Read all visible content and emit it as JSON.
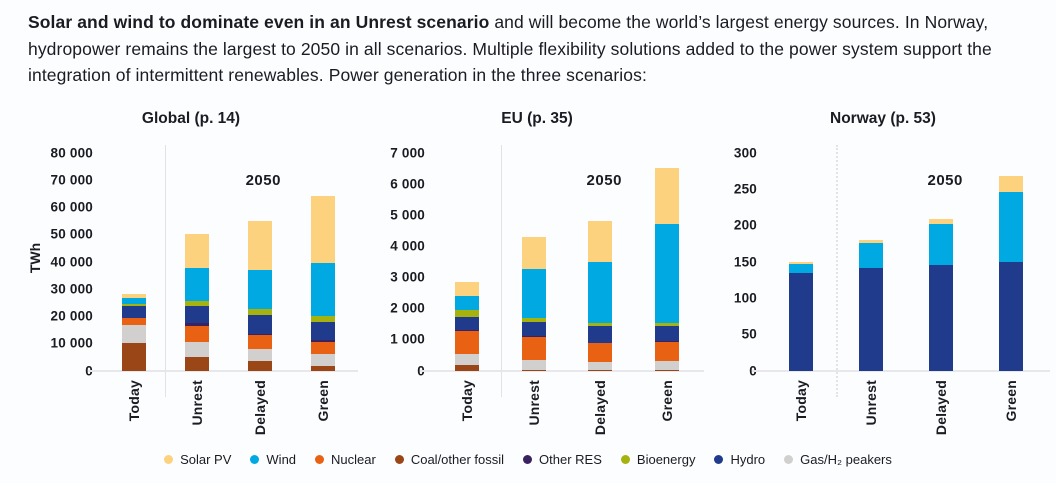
{
  "header": {
    "bold": "Solar and wind to dominate even in an Unrest scenario",
    "rest": " and will become the world’s largest energy sources. In Norway, hydropower remains the largest to 2050 in all scenarios. Multiple flexibility solutions added to the power system support the integration of intermittent renewables. Power generation in the three scenarios:"
  },
  "legend": {
    "items": [
      {
        "label": "Solar PV",
        "color": "#FCD27E"
      },
      {
        "label": "Wind",
        "color": "#00A9E2"
      },
      {
        "label": "Nuclear",
        "color": "#E96112"
      },
      {
        "label": "Coal/other fossil",
        "color": "#9A4617"
      },
      {
        "label": "Other RES",
        "color": "#3A2160"
      },
      {
        "label": "Bioenergy",
        "color": "#A6B30E"
      },
      {
        "label": "Hydro",
        "color": "#203A8C"
      },
      {
        "label": "Gas/H₂ peakers",
        "color": "#D1D0CE"
      }
    ]
  },
  "chart_data": [
    {
      "type": "bar",
      "title": "Global (p. 14)",
      "ylabel": "TWh",
      "annotation": "2050",
      "ylim": [
        0,
        80000
      ],
      "yticks": [
        {
          "value": 80000,
          "label": "80 000"
        },
        {
          "value": 70000,
          "label": "70 000"
        },
        {
          "value": 60000,
          "label": "60 000"
        },
        {
          "value": 50000,
          "label": "50 000"
        },
        {
          "value": 40000,
          "label": "40 000"
        },
        {
          "value": 30000,
          "label": "30 000"
        },
        {
          "value": 20000,
          "label": "20 000"
        },
        {
          "value": 10000,
          "label": "10 000"
        },
        {
          "value": 0,
          "label": "0"
        }
      ],
      "categories": [
        "Today",
        "Unrest",
        "Delayed",
        "Green"
      ],
      "series": [
        {
          "name": "Coal/other fossil",
          "color": "#9A4617",
          "values": [
            10000,
            5000,
            3500,
            1500
          ]
        },
        {
          "name": "Gas/H₂ peakers",
          "color": "#D1D0CE",
          "values": [
            6600,
            5500,
            4500,
            4500
          ]
        },
        {
          "name": "Nuclear",
          "color": "#E96112",
          "values": [
            2700,
            6000,
            5000,
            4500
          ]
        },
        {
          "name": "Other RES",
          "color": "#3A2160",
          "values": [
            100,
            1000,
            500,
            700
          ]
        },
        {
          "name": "Hydro",
          "color": "#203A8C",
          "values": [
            4200,
            6000,
            7000,
            6800
          ]
        },
        {
          "name": "Bioenergy",
          "color": "#A6B30E",
          "values": [
            700,
            2000,
            2000,
            2000
          ]
        },
        {
          "name": "Wind",
          "color": "#00A9E2",
          "values": [
            2400,
            12000,
            14500,
            19500
          ]
        },
        {
          "name": "Solar PV",
          "color": "#FCD27E",
          "values": [
            1400,
            12500,
            18000,
            24500
          ]
        }
      ]
    },
    {
      "type": "bar",
      "title": "EU (p. 35)",
      "annotation": "2050",
      "ylim": [
        0,
        7000
      ],
      "yticks": [
        {
          "value": 7000,
          "label": "7 000"
        },
        {
          "value": 6000,
          "label": "6 000"
        },
        {
          "value": 5000,
          "label": "5 000"
        },
        {
          "value": 4000,
          "label": "4 000"
        },
        {
          "value": 3000,
          "label": "3 000"
        },
        {
          "value": 2000,
          "label": "2 000"
        },
        {
          "value": 1000,
          "label": "1 000"
        },
        {
          "value": 0,
          "label": "0"
        }
      ],
      "categories": [
        "Today",
        "Unrest",
        "Delayed",
        "Green"
      ],
      "series": [
        {
          "name": "Coal/other fossil",
          "color": "#9A4617",
          "values": [
            190,
            30,
            20,
            20
          ]
        },
        {
          "name": "Gas/H₂ peakers",
          "color": "#D1D0CE",
          "values": [
            330,
            320,
            250,
            270
          ]
        },
        {
          "name": "Nuclear",
          "color": "#E96112",
          "values": [
            760,
            740,
            600,
            630
          ]
        },
        {
          "name": "Other RES",
          "color": "#3A2160",
          "values": [
            10,
            30,
            30,
            30
          ]
        },
        {
          "name": "Hydro",
          "color": "#203A8C",
          "values": [
            420,
            430,
            520,
            470
          ]
        },
        {
          "name": "Bioenergy",
          "color": "#A6B30E",
          "values": [
            220,
            130,
            110,
            110
          ]
        },
        {
          "name": "Wind",
          "color": "#00A9E2",
          "values": [
            470,
            1580,
            1950,
            3170
          ]
        },
        {
          "name": "Solar PV",
          "color": "#FCD27E",
          "values": [
            430,
            1040,
            1320,
            1800
          ]
        }
      ]
    },
    {
      "type": "bar",
      "title": "Norway (p. 53)",
      "annotation": "2050",
      "ylim": [
        0,
        300
      ],
      "yticks": [
        {
          "value": 300,
          "label": "300"
        },
        {
          "value": 250,
          "label": "250"
        },
        {
          "value": 200,
          "label": "200"
        },
        {
          "value": 150,
          "label": "150"
        },
        {
          "value": 100,
          "label": "100"
        },
        {
          "value": 50,
          "label": "50"
        },
        {
          "value": 0,
          "label": "0"
        }
      ],
      "categories": [
        "Today",
        "Unrest",
        "Delayed",
        "Green"
      ],
      "series": [
        {
          "name": "Hydro",
          "color": "#203A8C",
          "values": [
            134,
            141,
            145,
            150
          ]
        },
        {
          "name": "Wind",
          "color": "#00A9E2",
          "values": [
            13,
            35,
            57,
            95
          ]
        },
        {
          "name": "Solar PV",
          "color": "#FCD27E",
          "values": [
            3,
            4,
            7,
            23
          ]
        }
      ]
    }
  ]
}
